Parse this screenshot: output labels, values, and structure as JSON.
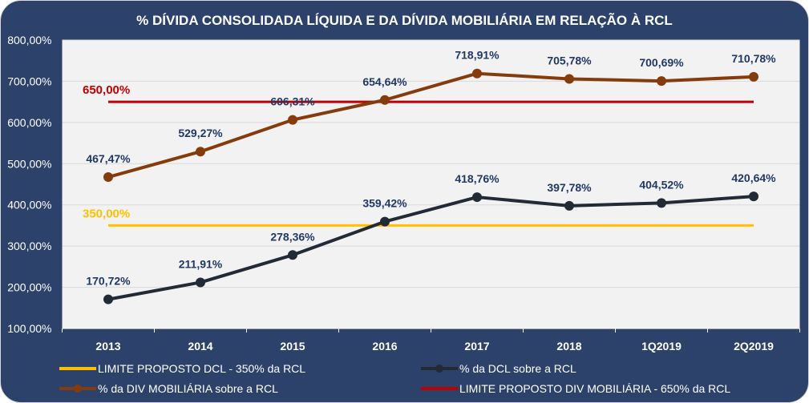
{
  "chart_data": {
    "type": "line",
    "title": "% DÍVIDA CONSOLIDADA LÍQUIDA E DA DÍVIDA MOBILIÁRIA EM RELAÇÃO À RCL",
    "categories": [
      "2013",
      "2014",
      "2015",
      "2016",
      "2017",
      "2018",
      "1Q2019",
      "2Q2019"
    ],
    "ylim": [
      100,
      800
    ],
    "yticks": [
      100,
      200,
      300,
      400,
      500,
      600,
      700,
      800
    ],
    "ytick_labels": [
      "100,00%",
      "200,00%",
      "300,00%",
      "400,00%",
      "500,00%",
      "600,00%",
      "700,00%",
      "800,00%"
    ],
    "grid": true,
    "legend_position": "bottom",
    "series": [
      {
        "name": "LIMITE PROPOSTO DCL - 350% da RCL",
        "color": "#FFC000",
        "values": [
          350,
          350,
          350,
          350,
          350,
          350,
          350,
          350
        ],
        "markers": false,
        "label": "350,00%"
      },
      {
        "name": "% da DCL sobre a RCL",
        "color": "#222A35",
        "values": [
          170.72,
          211.91,
          278.36,
          359.42,
          418.76,
          397.78,
          404.52,
          420.64
        ],
        "markers": true,
        "labels": [
          "170,72%",
          "211,91%",
          "278,36%",
          "359,42%",
          "418,76%",
          "397,78%",
          "404,52%",
          "420,64%"
        ]
      },
      {
        "name": "% da DIV MOBILIÁRIA sobre a RCL",
        "color": "#843C0C",
        "values": [
          467.47,
          529.27,
          606.31,
          654.64,
          718.91,
          705.78,
          700.69,
          710.78
        ],
        "markers": true,
        "labels": [
          "467,47%",
          "529,27%",
          "606,31%",
          "654,64%",
          "718,91%",
          "705,78%",
          "700,69%",
          "710,78%"
        ]
      },
      {
        "name": "LIMITE PROPOSTO DIV MOBILIÁRIA - 650% da RCL",
        "color": "#C00000",
        "values": [
          650,
          650,
          650,
          650,
          650,
          650,
          650,
          650
        ],
        "markers": false,
        "label": "650,00%"
      }
    ]
  }
}
